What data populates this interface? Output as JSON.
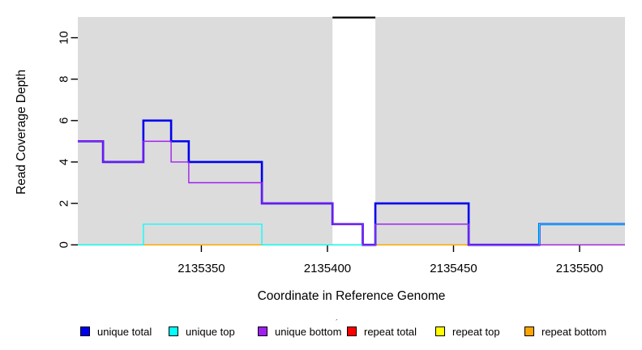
{
  "figure": {
    "xlabel": "Coordinate in Reference Genome",
    "ylabel": "Read Coverage Depth"
  },
  "legend": {
    "position": "bottom",
    "items": [
      {
        "label": "unique total",
        "color": "#0000EE"
      },
      {
        "label": "unique top",
        "color": "#00FFFF"
      },
      {
        "label": "unique bottom",
        "color": "#A020F0"
      },
      {
        "label": "repeat total",
        "color": "#FF0000"
      },
      {
        "label": "repeat top",
        "color": "#FFFF00"
      },
      {
        "label": "repeat bottom",
        "color": "#FFA500"
      }
    ],
    "stray_mark": "´"
  },
  "chart_data": {
    "type": "line",
    "subtype": "step-coverage",
    "title": "",
    "xlabel": "Coordinate in Reference Genome",
    "ylabel": "Read Coverage Depth",
    "xlim": [
      2135301,
      2135518
    ],
    "ylim": [
      0,
      11
    ],
    "x_ticks": [
      2135350,
      2135400,
      2135450,
      2135500
    ],
    "y_ticks": [
      0,
      2,
      4,
      6,
      8,
      10
    ],
    "grid": false,
    "plot_bg": "#DCDCDC",
    "tick_color": "#000000",
    "breaks": [
      2135301,
      2135311,
      2135327,
      2135338,
      2135345,
      2135374,
      2135402,
      2135414,
      2135419,
      2135456,
      2135484,
      2135518
    ],
    "series": [
      {
        "name": "repeat total",
        "color": "#FF0000",
        "line_width": 1.3,
        "values": [
          0,
          0,
          0,
          0,
          0,
          0,
          0,
          0,
          0,
          0,
          0
        ]
      },
      {
        "name": "repeat top",
        "color": "#FFFF00",
        "line_width": 1.3,
        "values": [
          0,
          0,
          0,
          0,
          0,
          0,
          0,
          0,
          0,
          0,
          0
        ]
      },
      {
        "name": "repeat bottom",
        "color": "#FFA500",
        "line_width": 1.3,
        "values": [
          0,
          0,
          0,
          0,
          0,
          0,
          0,
          0,
          0,
          0,
          0
        ]
      },
      {
        "name": "unique total",
        "color": "#0000EE",
        "line_width": 2.6,
        "values": [
          5,
          4,
          6,
          5,
          4,
          2,
          1,
          0,
          2,
          0,
          1
        ]
      },
      {
        "name": "unique top",
        "color": "#00FFFF",
        "line_width": 1.3,
        "values": [
          0,
          0,
          1,
          1,
          1,
          0,
          0,
          0,
          1,
          0,
          1
        ]
      },
      {
        "name": "unique bottom",
        "color": "#A020F0",
        "line_width": 1.4,
        "values": [
          5,
          4,
          5,
          4,
          3,
          2,
          1,
          0,
          1,
          0,
          0
        ]
      }
    ],
    "masked_region": {
      "x_from": 2135402,
      "x_to": 2135419,
      "fill": "#FFFFFF",
      "top_value": 11,
      "top_line_color": "#000000"
    }
  }
}
